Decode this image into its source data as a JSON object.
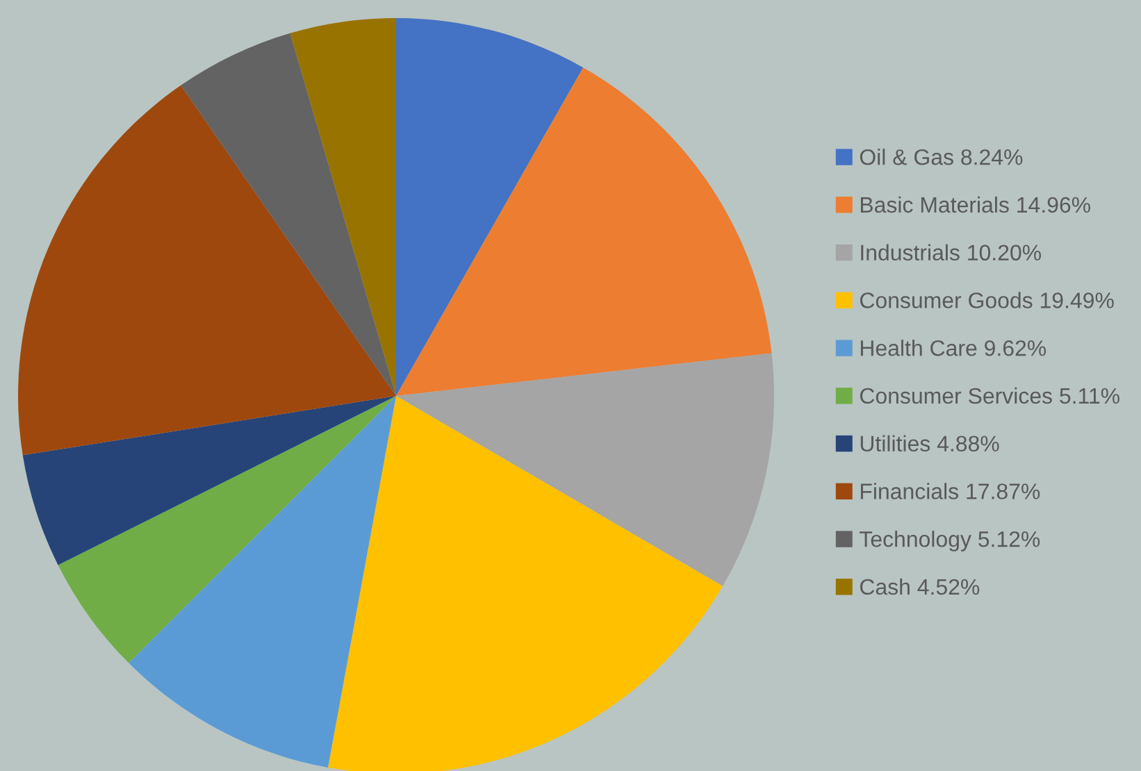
{
  "chart_data": {
    "type": "pie",
    "categories": [
      "Oil & Gas",
      "Basic Materials",
      "Industrials",
      "Consumer Goods",
      "Health Care",
      "Consumer Services",
      "Utilities",
      "Financials",
      "Technology",
      "Cash"
    ],
    "values": [
      8.24,
      14.96,
      10.2,
      19.49,
      9.62,
      5.11,
      4.88,
      17.87,
      5.12,
      4.52
    ],
    "value_labels": [
      "8.24%",
      "14.96%",
      "10.20%",
      "19.49%",
      "9.62%",
      "5.11%",
      "4.88%",
      "17.87%",
      "5.12%",
      "4.52%"
    ],
    "colors": [
      "#4472c4",
      "#ed7d31",
      "#a5a5a5",
      "#ffc000",
      "#5b9bd5",
      "#70ad47",
      "#264478",
      "#9e480e",
      "#636363",
      "#997300"
    ],
    "legend": "right"
  }
}
